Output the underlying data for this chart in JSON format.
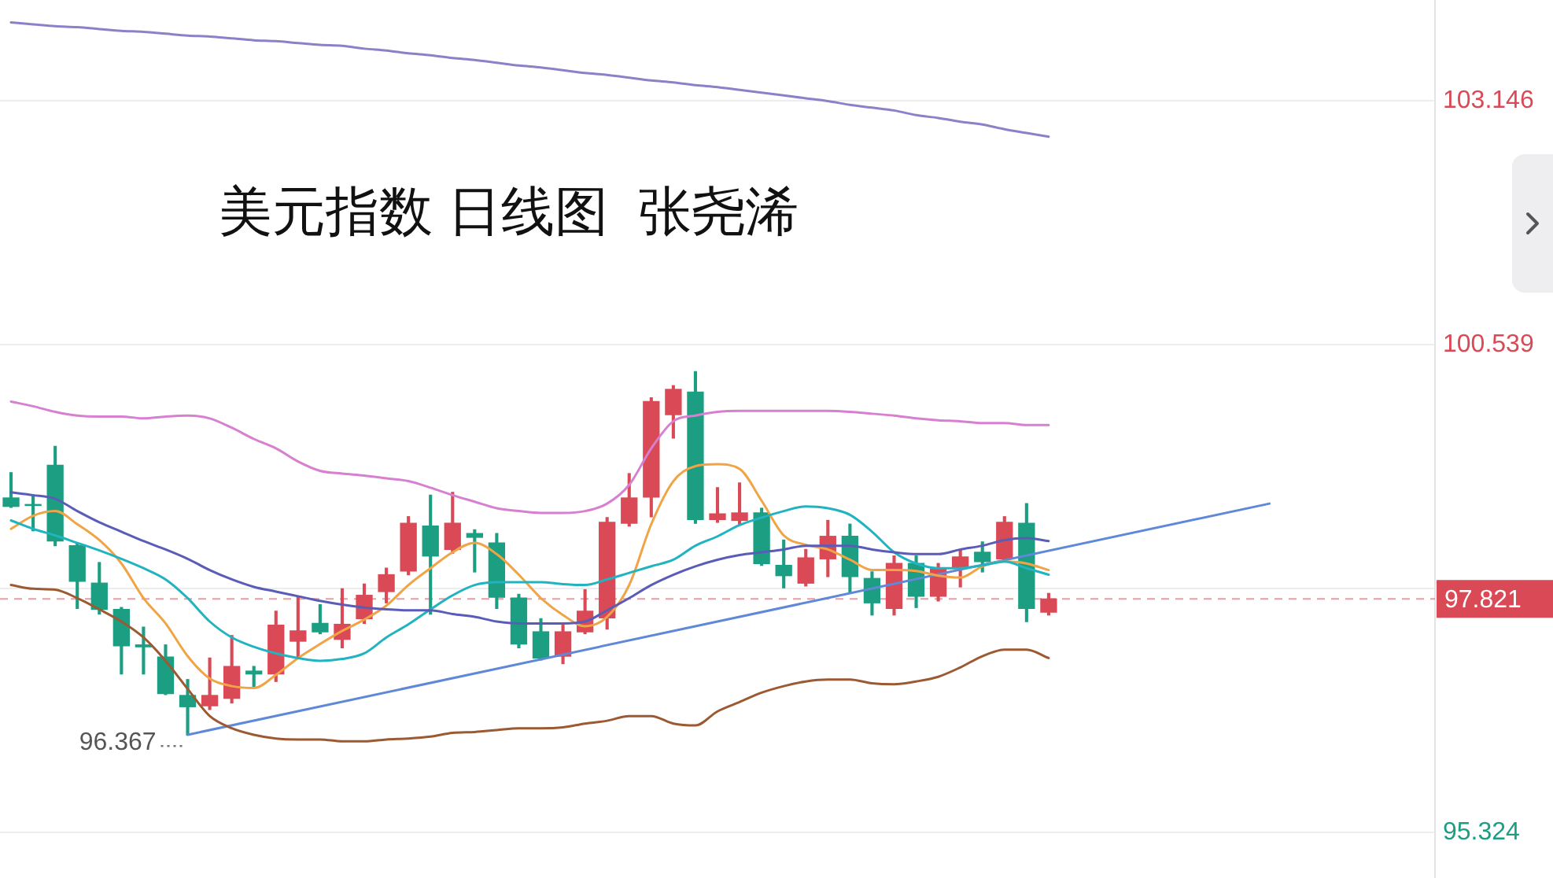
{
  "chart_data": {
    "type": "candlestick",
    "title": "美元指数 日线图  张尧浠",
    "categories": [
      null,
      null,
      null,
      null,
      null,
      null,
      null,
      null,
      null,
      null,
      null,
      null,
      null,
      null,
      null,
      null,
      null,
      null,
      null,
      null,
      null,
      null,
      null,
      null,
      null,
      null,
      null,
      null,
      null,
      null,
      null,
      null,
      null,
      null,
      null,
      null,
      null,
      null,
      null,
      null,
      null,
      null,
      null,
      null,
      null,
      null,
      null,
      null,
      null,
      null,
      null,
      null,
      null,
      null,
      null,
      null,
      null,
      null,
      null,
      null,
      null,
      null,
      null,
      null,
      null
    ],
    "ohlc": [
      [
        98.9,
        99.17,
        98.8,
        98.81
      ],
      [
        98.83,
        98.92,
        98.55,
        98.82
      ],
      [
        99.25,
        99.45,
        98.39,
        98.44
      ],
      [
        98.39,
        98.42,
        97.72,
        98.01
      ],
      [
        97.99,
        98.21,
        97.66,
        97.71
      ],
      [
        97.71,
        97.73,
        97.02,
        97.32
      ],
      [
        97.33,
        97.52,
        97.02,
        97.31
      ],
      [
        97.2,
        97.33,
        96.8,
        96.81
      ],
      [
        96.79,
        96.96,
        96.367,
        96.67
      ],
      [
        96.68,
        97.19,
        96.64,
        96.79
      ],
      [
        96.76,
        97.43,
        96.71,
        97.1
      ],
      [
        97.05,
        97.1,
        96.88,
        97.02
      ],
      [
        97.02,
        97.69,
        96.94,
        97.54
      ],
      [
        97.37,
        97.84,
        97.19,
        97.48
      ],
      [
        97.56,
        97.76,
        97.45,
        97.47
      ],
      [
        97.39,
        97.93,
        97.3,
        97.55
      ],
      [
        97.61,
        97.98,
        97.56,
        97.86
      ],
      [
        97.9,
        98.15,
        97.78,
        98.08
      ],
      [
        98.12,
        98.7,
        98.08,
        98.63
      ],
      [
        98.6,
        98.93,
        97.66,
        98.28
      ],
      [
        98.35,
        98.96,
        98.31,
        98.63
      ],
      [
        98.52,
        98.56,
        98.11,
        98.48
      ],
      [
        98.42,
        98.52,
        97.72,
        97.84
      ],
      [
        97.83,
        97.87,
        97.3,
        97.34
      ],
      [
        97.47,
        97.61,
        97.17,
        97.19
      ],
      [
        97.21,
        97.54,
        97.13,
        97.47
      ],
      [
        97.47,
        97.92,
        97.45,
        97.69
      ],
      [
        97.62,
        98.69,
        97.5,
        98.64
      ],
      [
        98.63,
        99.16,
        98.6,
        98.9
      ],
      [
        98.91,
        99.97,
        98.7,
        99.93
      ],
      [
        99.79,
        100.1,
        99.54,
        100.06
      ],
      [
        100.03,
        100.25,
        98.63,
        98.67
      ],
      [
        98.67,
        99.01,
        98.64,
        98.73
      ],
      [
        98.66,
        99.06,
        98.62,
        98.74
      ],
      [
        98.74,
        98.79,
        98.18,
        98.2
      ],
      [
        98.18,
        98.45,
        97.94,
        98.07
      ],
      [
        97.99,
        98.35,
        97.96,
        98.26
      ],
      [
        98.25,
        98.66,
        98.06,
        98.49
      ],
      [
        98.49,
        98.62,
        97.89,
        98.06
      ],
      [
        98.04,
        98.11,
        97.65,
        97.78
      ],
      [
        97.72,
        98.28,
        97.65,
        98.2
      ],
      [
        98.2,
        98.28,
        97.73,
        97.85
      ],
      [
        97.85,
        98.2,
        97.8,
        98.14
      ],
      [
        98.16,
        98.34,
        97.95,
        98.27
      ],
      [
        98.32,
        98.43,
        98.11,
        98.22
      ],
      [
        98.25,
        98.7,
        98.22,
        98.64
      ],
      [
        98.63,
        98.84,
        97.58,
        97.72
      ],
      [
        97.68,
        97.88,
        97.65,
        97.821
      ],
      null,
      null,
      null,
      null,
      null,
      null,
      null,
      null,
      null,
      null,
      null,
      null,
      null,
      null,
      null,
      null,
      null
    ],
    "colors": [
      "#1b9e82",
      "#1b9e82",
      "#1b9e82",
      "#1b9e82",
      "#1b9e82",
      "#1b9e82",
      "#1b9e82",
      "#1b9e82",
      "#1b9e82",
      "#d94a56",
      "#d94a56",
      "#1b9e82",
      "#d94a56",
      "#d94a56",
      "#1b9e82",
      "#d94a56",
      "#d94a56",
      "#d94a56",
      "#d94a56",
      "#1b9e82",
      "#d94a56",
      "#1b9e82",
      "#1b9e82",
      "#1b9e82",
      "#1b9e82",
      "#d94a56",
      "#d94a56",
      "#d94a56",
      "#d94a56",
      "#d94a56",
      "#d94a56",
      "#1b9e82",
      "#d94a56",
      "#d94a56",
      "#1b9e82",
      "#1b9e82",
      "#d94a56",
      "#d94a56",
      "#1b9e82",
      "#1b9e82",
      "#d94a56",
      "#1b9e82",
      "#d94a56",
      "#d94a56",
      "#1b9e82",
      "#d94a56",
      "#1b9e82",
      "#d94a56",
      null,
      null,
      null,
      null,
      null,
      null,
      null,
      null,
      null,
      null,
      null,
      null,
      null,
      null,
      null,
      null,
      null
    ],
    "series": [
      {
        "type": "line",
        "color": "#8a82c8",
        "values": [
          103.98,
          103.96,
          103.94,
          103.93,
          103.91,
          103.89,
          103.88,
          103.86,
          103.84,
          103.83,
          103.81,
          103.79,
          103.78,
          103.76,
          103.74,
          103.73,
          103.7,
          103.68,
          103.65,
          103.63,
          103.6,
          103.58,
          103.55,
          103.52,
          103.5,
          103.47,
          103.44,
          103.42,
          103.39,
          103.36,
          103.34,
          103.31,
          103.29,
          103.26,
          103.23,
          103.2,
          103.17,
          103.14,
          103.1,
          103.07,
          103.04,
          102.99,
          102.96,
          102.92,
          102.89,
          102.84,
          102.8,
          102.76,
          null,
          null,
          null,
          null,
          null,
          null,
          null,
          null,
          null,
          null,
          null,
          null,
          null,
          null,
          null,
          null,
          null
        ]
      },
      {
        "type": "line",
        "color": "#d77fd0",
        "values": [
          99.93,
          99.88,
          99.82,
          99.78,
          99.77,
          99.77,
          99.75,
          99.77,
          99.78,
          99.75,
          99.65,
          99.53,
          99.43,
          99.29,
          99.19,
          99.16,
          99.14,
          99.11,
          99.08,
          99.01,
          98.93,
          98.86,
          98.79,
          98.76,
          98.74,
          98.74,
          98.76,
          98.84,
          99.04,
          99.43,
          99.72,
          99.78,
          99.82,
          99.83,
          99.83,
          99.83,
          99.83,
          99.83,
          99.82,
          99.8,
          99.78,
          99.75,
          99.73,
          99.72,
          99.7,
          99.7,
          99.68,
          99.68,
          null,
          null,
          null,
          null,
          null,
          null,
          null,
          null,
          null,
          null,
          null,
          null,
          null,
          null,
          null,
          null,
          null
        ]
      },
      {
        "type": "line",
        "color": "#5a5cb8",
        "values": [
          98.96,
          98.93,
          98.89,
          98.76,
          98.64,
          98.54,
          98.44,
          98.35,
          98.25,
          98.13,
          98.03,
          97.95,
          97.9,
          97.85,
          97.8,
          97.76,
          97.73,
          97.71,
          97.7,
          97.7,
          97.66,
          97.63,
          97.58,
          97.56,
          97.56,
          97.56,
          97.58,
          97.7,
          97.83,
          97.97,
          98.08,
          98.17,
          98.24,
          98.29,
          98.32,
          98.35,
          98.39,
          98.39,
          98.39,
          98.35,
          98.32,
          98.3,
          98.3,
          98.35,
          98.39,
          98.45,
          98.47,
          98.44,
          null,
          null,
          null,
          null,
          null,
          null,
          null,
          null,
          null,
          null,
          null,
          null,
          null,
          null,
          null,
          null,
          null
        ]
      },
      {
        "type": "line",
        "color": "#22b3c0",
        "values": [
          98.66,
          98.57,
          98.5,
          98.42,
          98.34,
          98.25,
          98.15,
          98.03,
          97.83,
          97.58,
          97.41,
          97.31,
          97.24,
          97.19,
          97.16,
          97.18,
          97.24,
          97.41,
          97.55,
          97.71,
          97.86,
          97.97,
          98.0,
          98.0,
          98.0,
          97.98,
          97.97,
          98.03,
          98.1,
          98.17,
          98.24,
          98.39,
          98.49,
          98.61,
          98.69,
          98.76,
          98.81,
          98.79,
          98.72,
          98.54,
          98.32,
          98.2,
          98.15,
          98.15,
          98.18,
          98.22,
          98.15,
          98.08,
          null,
          null,
          null,
          null,
          null,
          null,
          null,
          null,
          null,
          null,
          null,
          null,
          null,
          null,
          null,
          null,
          null
        ]
      },
      {
        "type": "line",
        "color": "#f0a446",
        "values": [
          98.57,
          98.71,
          98.76,
          98.62,
          98.45,
          98.2,
          97.83,
          97.56,
          97.21,
          96.97,
          96.89,
          96.87,
          97.01,
          97.19,
          97.34,
          97.48,
          97.6,
          97.75,
          97.97,
          98.15,
          98.32,
          98.42,
          98.3,
          98.08,
          97.83,
          97.65,
          97.53,
          97.63,
          97.97,
          98.62,
          99.08,
          99.24,
          99.26,
          99.21,
          98.87,
          98.5,
          98.4,
          98.35,
          98.24,
          98.13,
          98.13,
          98.12,
          98.07,
          98.05,
          98.17,
          98.22,
          98.2,
          98.13,
          null,
          null,
          null,
          null,
          null,
          null,
          null,
          null,
          null,
          null,
          null,
          null,
          null,
          null,
          null,
          null,
          null
        ]
      },
      {
        "type": "line",
        "color": "#9c5a33",
        "values": [
          97.97,
          97.93,
          97.92,
          97.83,
          97.71,
          97.58,
          97.41,
          97.16,
          96.86,
          96.57,
          96.44,
          96.37,
          96.33,
          96.32,
          96.32,
          96.3,
          96.3,
          96.32,
          96.33,
          96.35,
          96.39,
          96.4,
          96.42,
          96.44,
          96.44,
          96.45,
          96.49,
          96.52,
          96.57,
          96.57,
          96.49,
          96.47,
          96.62,
          96.72,
          96.82,
          96.89,
          96.94,
          96.96,
          96.96,
          96.92,
          96.91,
          96.94,
          96.99,
          97.09,
          97.21,
          97.28,
          97.28,
          97.19,
          null,
          null,
          null,
          null,
          null,
          null,
          null,
          null,
          null,
          null,
          null,
          null,
          null,
          null,
          null,
          null,
          null
        ]
      },
      {
        "type": "line",
        "color": "#6088d8",
        "values": [
          null,
          null,
          null,
          null,
          null,
          null,
          null,
          null,
          96.37,
          null,
          null,
          null,
          null,
          null,
          null,
          null,
          null,
          null,
          null,
          null,
          null,
          null,
          null,
          null,
          null,
          null,
          null,
          null,
          null,
          null,
          null,
          null,
          null,
          null,
          null,
          null,
          null,
          null,
          null,
          null,
          null,
          null,
          null,
          null,
          null,
          null,
          null,
          null,
          null,
          null,
          null,
          null,
          null,
          null,
          null,
          null,
          null,
          98.84,
          null,
          null,
          null,
          null,
          null,
          null,
          null
        ]
      }
    ],
    "ylim": [
      94.84,
      104.22
    ],
    "yticks": [
      95.324,
      {
        "value": 97.931,
        "label": null
      },
      100.539,
      103.146
    ],
    "grid": "y",
    "tick_labels": "y",
    "ref_lines": [
      {
        "axis": "y",
        "value": 97.821,
        "label": "97.821",
        "color": "#d94a56",
        "line_style": "dashed"
      }
    ],
    "annotations": [
      "96.367"
    ]
  }
}
